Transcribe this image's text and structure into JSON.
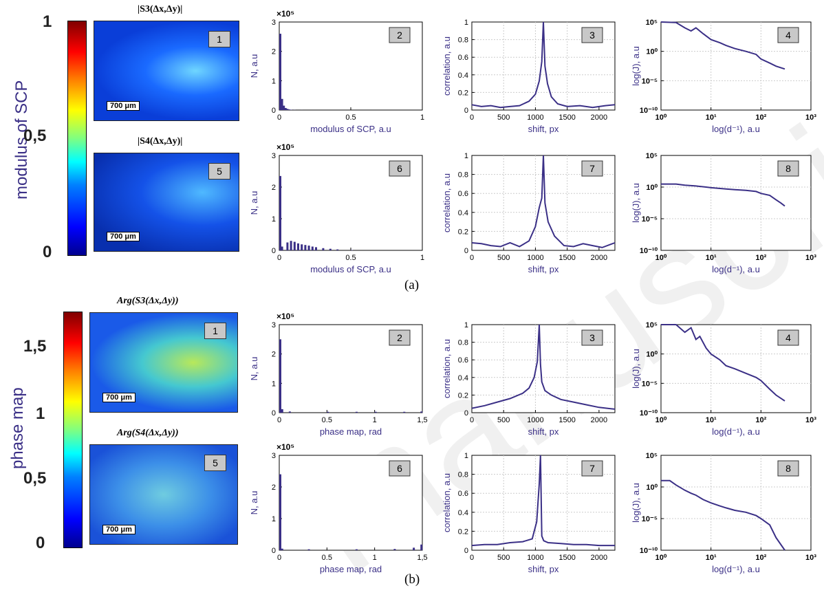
{
  "figure": {
    "subfig_a_label": "(a)",
    "subfig_b_label": "(b)",
    "watermark": "manuscript"
  },
  "colorbar_a": {
    "label": "modulus of SCP",
    "ticks": [
      "1",
      "0,5",
      "0"
    ]
  },
  "colorbar_b": {
    "label": "phase map",
    "ticks": [
      "1,5",
      "1",
      "0,5",
      "0"
    ]
  },
  "image_titles": {
    "a1": "|S3(Δx,Δy)|",
    "a5": "|S4(Δx,Δy)|",
    "b1": "Arg(S3(Δx,Δy))",
    "b5": "Arg(S4(Δx,Δy))"
  },
  "scalebar_label": "700 μm",
  "panel_numbers": {
    "p1": "1",
    "p2": "2",
    "p3": "3",
    "p4": "4",
    "p5": "5",
    "p6": "6",
    "p7": "7",
    "p8": "8"
  },
  "colors": {
    "series": "#3a2f86",
    "label": "#3a2f86"
  },
  "chart_data": [
    {
      "id": "a2",
      "type": "bar",
      "xlabel": "modulus of SCP, a.u",
      "ylabel": "N, a.u",
      "exponent_label": "×10⁵",
      "xlim": [
        0,
        1
      ],
      "ylim": [
        0,
        3
      ],
      "xticks": [
        "0",
        "0.5",
        "1"
      ],
      "yticks": [
        "0",
        "1",
        "2",
        "3"
      ],
      "x": [
        0.0,
        0.0125,
        0.025,
        0.0375,
        0.05,
        0.0625,
        0.075,
        0.1,
        0.15
      ],
      "values": [
        2.6,
        0.38,
        0.15,
        0.07,
        0.04,
        0.02,
        0.01,
        0.005,
        0.002
      ]
    },
    {
      "id": "a6",
      "type": "bar",
      "xlabel": "modulus of SCP, a.u",
      "ylabel": "N, a.u",
      "exponent_label": "×10⁵",
      "xlim": [
        0,
        1
      ],
      "ylim": [
        0,
        3
      ],
      "xticks": [
        "0",
        "0.5",
        "1"
      ],
      "yticks": [
        "0",
        "1",
        "2",
        "3"
      ],
      "x": [
        0.0,
        0.0125,
        0.05,
        0.075,
        0.1,
        0.125,
        0.15,
        0.175,
        0.2,
        0.225,
        0.25,
        0.3,
        0.35,
        0.4,
        0.5
      ],
      "values": [
        2.35,
        0.12,
        0.25,
        0.3,
        0.27,
        0.22,
        0.19,
        0.17,
        0.15,
        0.12,
        0.1,
        0.07,
        0.05,
        0.03,
        0.01
      ]
    },
    {
      "id": "b2",
      "type": "bar",
      "xlabel": "phase map, rad",
      "ylabel": "N, a.u",
      "exponent_label": "×10⁵",
      "xlim": [
        0,
        1.5
      ],
      "ylim": [
        0,
        3
      ],
      "xticks": [
        "0",
        "0.5",
        "1",
        "1,5"
      ],
      "yticks": [
        "0",
        "1",
        "2",
        "3"
      ],
      "x": [
        0.0,
        0.02,
        0.1,
        0.5,
        0.8,
        1.0,
        1.3,
        1.48
      ],
      "values": [
        2.5,
        0.12,
        0.04,
        0.03,
        0.03,
        0.03,
        0.03,
        0.04
      ]
    },
    {
      "id": "b6",
      "type": "bar",
      "xlabel": "phase map, rad",
      "ylabel": "N, a.u",
      "exponent_label": "×10⁵",
      "xlim": [
        0,
        1.5
      ],
      "ylim": [
        0,
        3
      ],
      "xticks": [
        "0",
        "0.5",
        "1",
        "1,5"
      ],
      "yticks": [
        "0",
        "1",
        "2",
        "3"
      ],
      "x": [
        0.0,
        0.02,
        0.3,
        0.8,
        1.2,
        1.4,
        1.48
      ],
      "values": [
        2.4,
        0.05,
        0.03,
        0.03,
        0.04,
        0.08,
        0.18
      ]
    },
    {
      "id": "a3",
      "type": "line",
      "xlabel": "shift, px",
      "ylabel": "correlation, a.u",
      "xlim": [
        0,
        2250
      ],
      "ylim": [
        0,
        1
      ],
      "xticks": [
        "0",
        "500",
        "1000",
        "1500",
        "2000"
      ],
      "yticks": [
        "0",
        "0.2",
        "0.4",
        "0.6",
        "0.8",
        "1"
      ],
      "x": [
        0,
        150,
        300,
        450,
        600,
        750,
        900,
        1000,
        1060,
        1100,
        1125,
        1150,
        1190,
        1250,
        1350,
        1500,
        1700,
        1900,
        2100,
        2250
      ],
      "y": [
        0.06,
        0.04,
        0.05,
        0.03,
        0.04,
        0.05,
        0.1,
        0.18,
        0.33,
        0.55,
        1.0,
        0.5,
        0.3,
        0.15,
        0.07,
        0.04,
        0.05,
        0.03,
        0.05,
        0.06
      ]
    },
    {
      "id": "a7",
      "type": "line",
      "xlabel": "shift, px",
      "ylabel": "correlation, a.u",
      "xlim": [
        0,
        2250
      ],
      "ylim": [
        0,
        1
      ],
      "xticks": [
        "0",
        "500",
        "1000",
        "1500",
        "2000"
      ],
      "yticks": [
        "0",
        "0.2",
        "0.4",
        "0.6",
        "0.8",
        "1"
      ],
      "x": [
        0,
        150,
        300,
        450,
        600,
        750,
        900,
        1000,
        1060,
        1100,
        1125,
        1150,
        1200,
        1300,
        1450,
        1600,
        1750,
        1900,
        2050,
        2250
      ],
      "y": [
        0.08,
        0.07,
        0.05,
        0.04,
        0.08,
        0.04,
        0.1,
        0.25,
        0.45,
        0.55,
        1.0,
        0.5,
        0.3,
        0.15,
        0.05,
        0.04,
        0.07,
        0.05,
        0.03,
        0.08
      ]
    },
    {
      "id": "b3",
      "type": "line",
      "xlabel": "shift, px",
      "ylabel": "correlation, a.u",
      "xlim": [
        0,
        2250
      ],
      "ylim": [
        0,
        1
      ],
      "xticks": [
        "0",
        "500",
        "1000",
        "1500",
        "2000"
      ],
      "yticks": [
        "0",
        "0.2",
        "0.4",
        "0.6",
        "0.8",
        "1"
      ],
      "x": [
        0,
        200,
        400,
        600,
        800,
        900,
        980,
        1030,
        1060,
        1080,
        1100,
        1150,
        1250,
        1400,
        1600,
        1800,
        2000,
        2250
      ],
      "y": [
        0.05,
        0.08,
        0.12,
        0.16,
        0.22,
        0.28,
        0.4,
        0.58,
        1.0,
        0.55,
        0.35,
        0.25,
        0.2,
        0.15,
        0.12,
        0.09,
        0.06,
        0.04
      ]
    },
    {
      "id": "b7",
      "type": "line",
      "xlabel": "shift, px",
      "ylabel": "correlation, a.u",
      "xlim": [
        0,
        2250
      ],
      "ylim": [
        0,
        1
      ],
      "xticks": [
        "0",
        "500",
        "1000",
        "1500",
        "2000"
      ],
      "yticks": [
        "0",
        "0.2",
        "0.4",
        "0.6",
        "0.8",
        "1"
      ],
      "x": [
        0,
        200,
        400,
        600,
        800,
        950,
        1020,
        1060,
        1080,
        1100,
        1130,
        1200,
        1400,
        1600,
        1800,
        2000,
        2250
      ],
      "y": [
        0.05,
        0.06,
        0.06,
        0.08,
        0.09,
        0.12,
        0.3,
        0.7,
        1.0,
        0.15,
        0.1,
        0.08,
        0.07,
        0.06,
        0.06,
        0.05,
        0.05
      ]
    },
    {
      "id": "a4",
      "type": "line",
      "scale": "log",
      "xlabel": "log(d⁻¹), a.u",
      "ylabel": "log(J), a.u",
      "xlim": [
        1,
        1000
      ],
      "ylim": [
        1e-10,
        100000.0
      ],
      "xticks": [
        "10⁰",
        "10¹",
        "10²",
        "10³"
      ],
      "yticks": [
        "10⁻¹⁰",
        "10⁻⁵",
        "10⁰",
        "10⁵"
      ],
      "x": [
        1,
        2,
        3,
        4,
        5,
        7,
        10,
        15,
        20,
        30,
        50,
        80,
        100,
        150,
        200,
        300
      ],
      "y": [
        100000.0,
        80000.0,
        10000.0,
        3000.0,
        10000.0,
        1000.0,
        100,
        30,
        10,
        3,
        1,
        0.3,
        0.05,
        0.01,
        0.003,
        0.001
      ]
    },
    {
      "id": "a8",
      "type": "line",
      "scale": "log",
      "xlabel": "log(d⁻¹), a.u",
      "ylabel": "log(J), a.u",
      "xlim": [
        1,
        1000
      ],
      "ylim": [
        1e-10,
        100000.0
      ],
      "xticks": [
        "10⁰",
        "10¹",
        "10²",
        "10³"
      ],
      "yticks": [
        "10⁻¹⁰",
        "10⁻⁵",
        "10⁰",
        "10⁵"
      ],
      "x": [
        1,
        2,
        3,
        5,
        8,
        10,
        20,
        30,
        50,
        80,
        100,
        150,
        200,
        250,
        300
      ],
      "y": [
        3,
        3,
        2,
        1.5,
        1,
        0.8,
        0.5,
        0.4,
        0.3,
        0.2,
        0.1,
        0.05,
        0.01,
        0.003,
        0.001
      ]
    },
    {
      "id": "b4",
      "type": "line",
      "scale": "log",
      "xlabel": "log(d⁻¹), a.u",
      "ylabel": "log(J), a.u",
      "xlim": [
        1,
        1000
      ],
      "ylim": [
        1e-10,
        100000.0
      ],
      "xticks": [
        "10⁰",
        "10¹",
        "10²",
        "10³"
      ],
      "yticks": [
        "10⁻¹⁰",
        "10⁻⁵",
        "10⁰",
        "10⁵"
      ],
      "x": [
        1,
        2,
        3,
        4,
        5,
        6,
        8,
        10,
        15,
        20,
        30,
        50,
        80,
        100,
        150,
        200,
        300
      ],
      "y": [
        100000.0,
        100000.0,
        5000.0,
        30000.0,
        300,
        1000.0,
        10,
        1,
        0.1,
        0.01,
        0.003,
        0.0005,
        0.0001,
        3e-05,
        1e-06,
        1e-07,
        1e-08
      ]
    },
    {
      "id": "b8",
      "type": "line",
      "scale": "log",
      "xlabel": "log(d⁻¹), a.u",
      "ylabel": "log(J), a.u",
      "xlim": [
        1,
        1000
      ],
      "ylim": [
        1e-10,
        100000.0
      ],
      "xticks": [
        "10⁰",
        "10¹",
        "10²",
        "10³"
      ],
      "yticks": [
        "10⁻¹⁰",
        "10⁻⁵",
        "10⁰",
        "10⁵"
      ],
      "x": [
        1,
        1.5,
        2,
        3,
        4,
        5,
        7,
        10,
        15,
        20,
        30,
        50,
        80,
        100,
        150,
        200,
        300
      ],
      "y": [
        10,
        10,
        2,
        0.3,
        0.1,
        0.05,
        0.01,
        0.003,
        0.001,
        0.0005,
        0.0002,
        0.0001,
        3e-05,
        1e-05,
        1e-06,
        1e-08,
        1e-10
      ]
    }
  ]
}
